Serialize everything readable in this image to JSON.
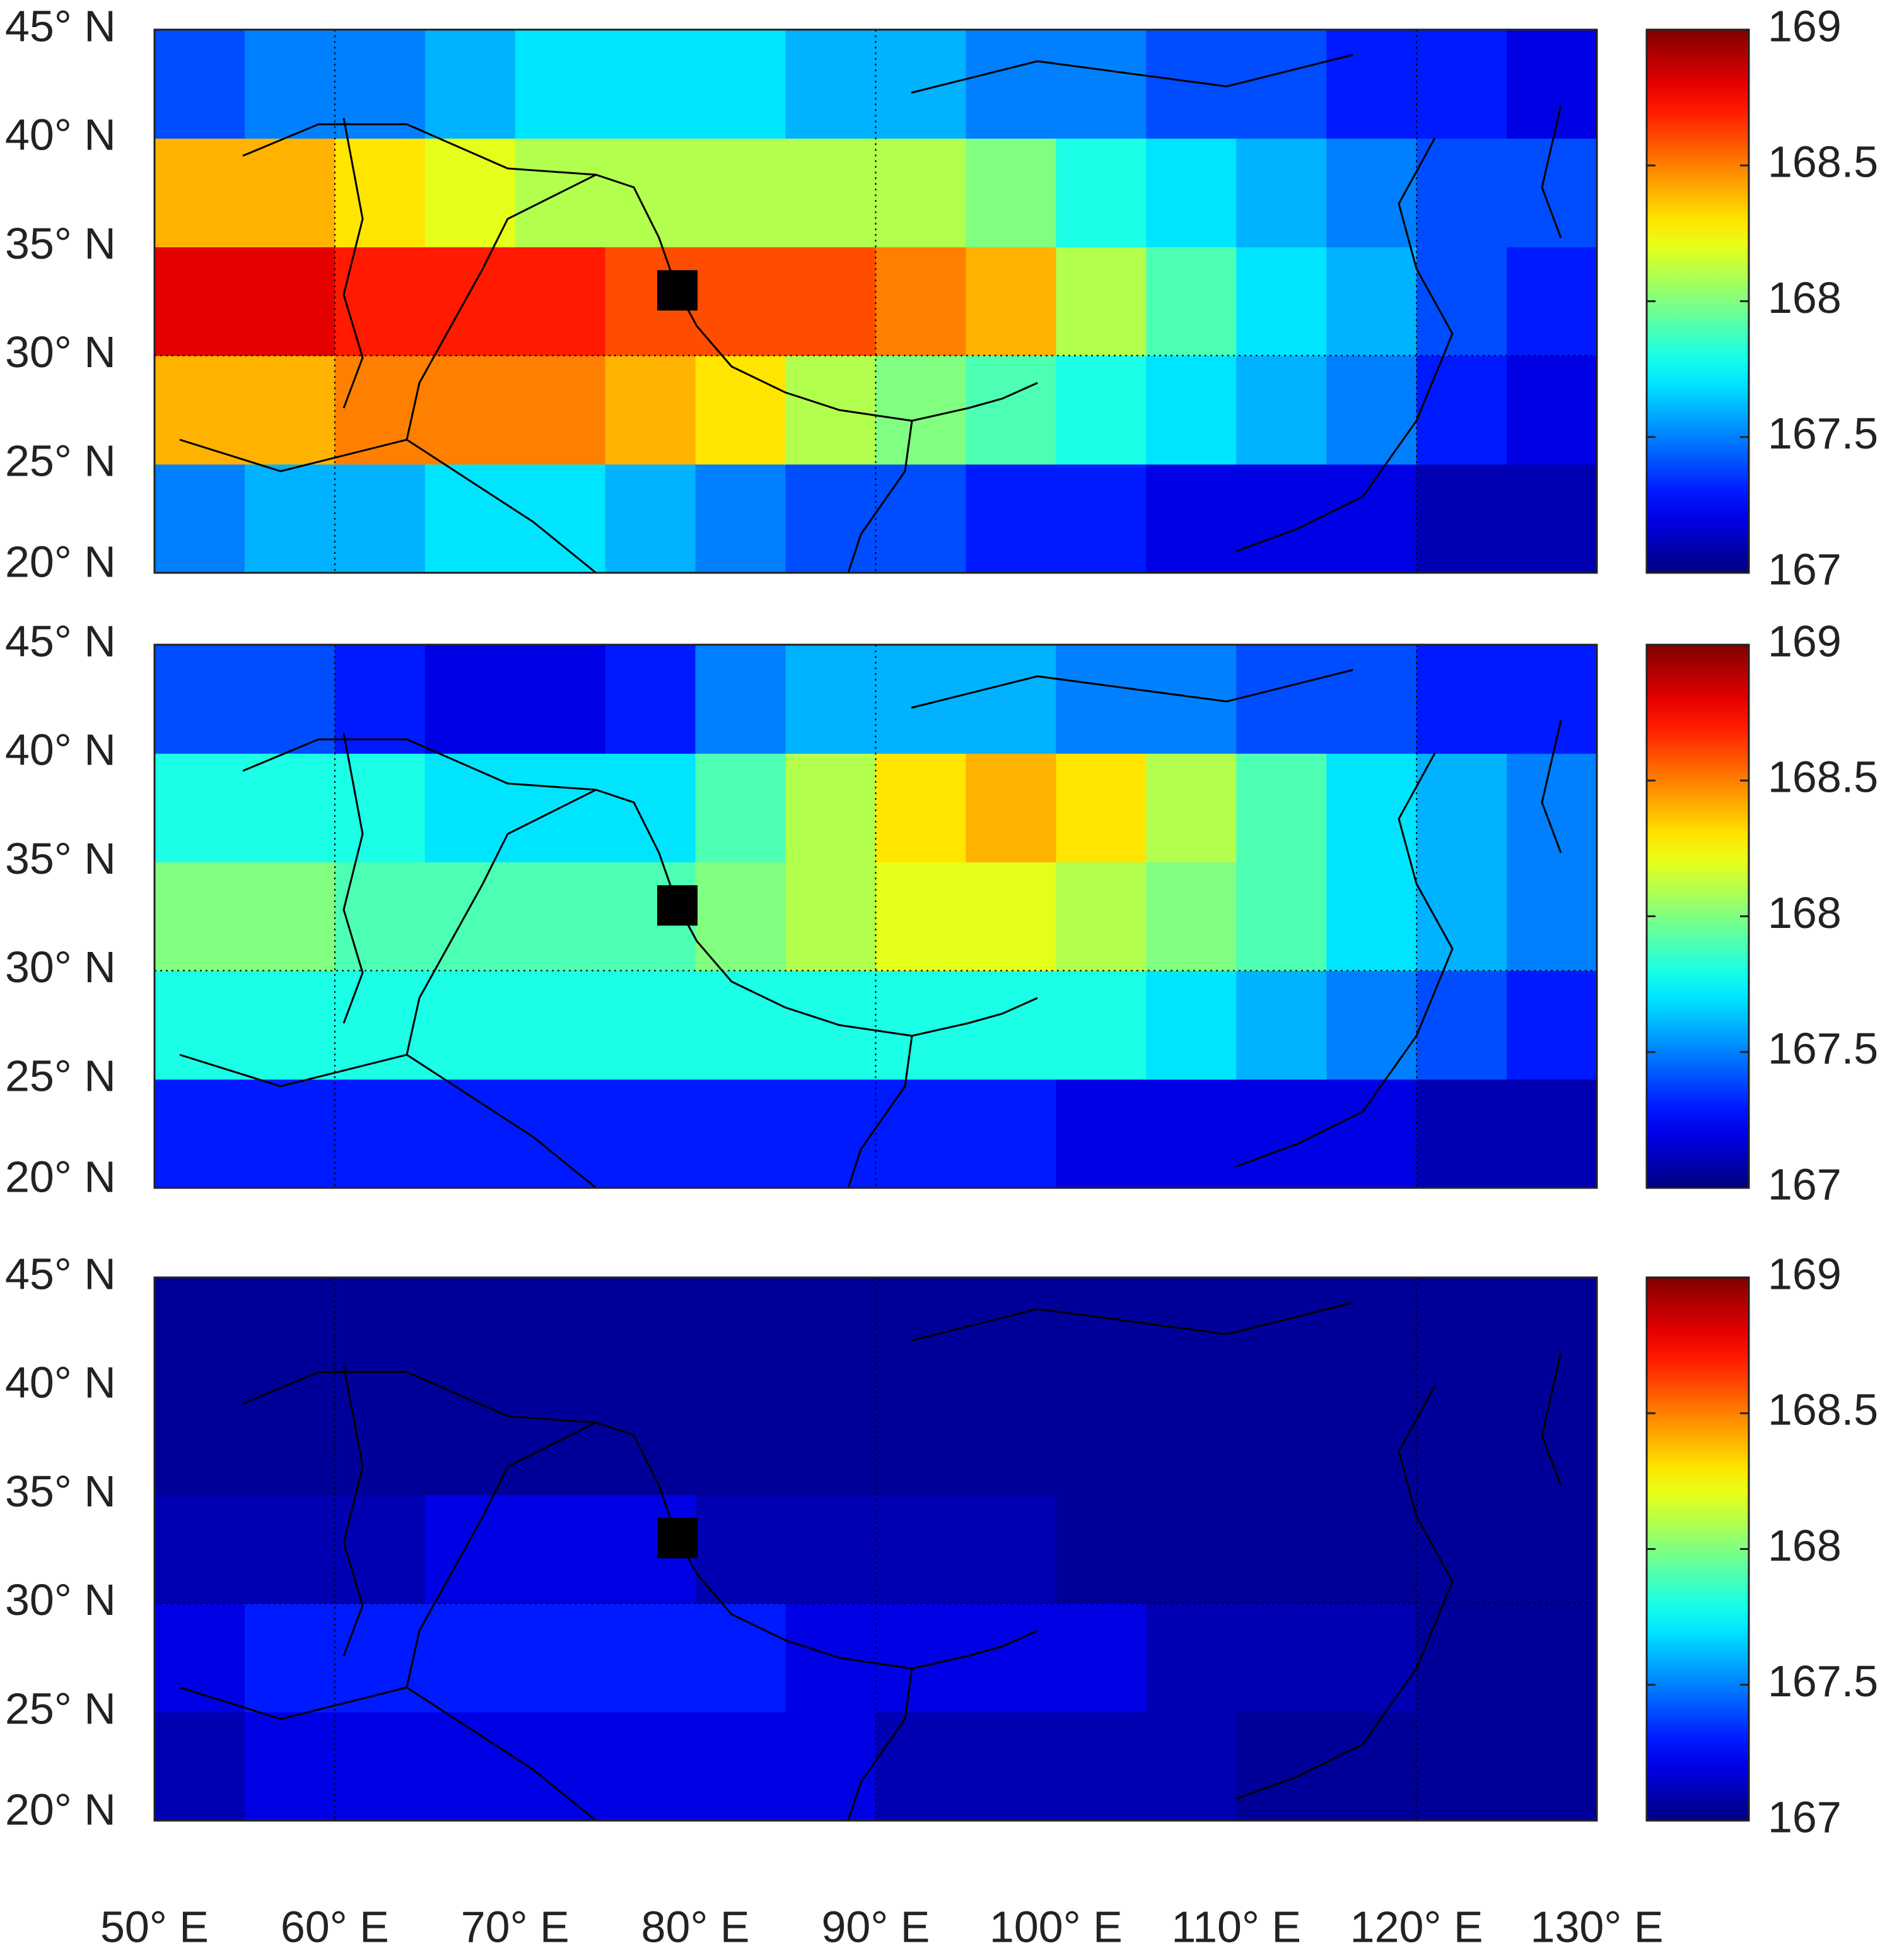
{
  "chart_data": [
    {
      "type": "heatmap",
      "colormap": "jet",
      "x": [
        52.5,
        57.5,
        62.5,
        67.5,
        72.5,
        77.5,
        82.5,
        87.5,
        92.5,
        97.5,
        102.5,
        107.5,
        112.5,
        117.5,
        122.5,
        127.5
      ],
      "y": [
        22.5,
        27.5,
        32.5,
        37.5,
        42.5
      ],
      "values": [
        [
          167.5,
          167.6,
          167.6,
          167.7,
          167.7,
          167.6,
          167.5,
          167.4,
          167.4,
          167.3,
          167.3,
          167.2,
          167.2,
          167.2,
          167.1,
          167.1
        ],
        [
          168.4,
          168.4,
          168.5,
          168.5,
          168.5,
          168.4,
          168.3,
          168.1,
          168.0,
          167.9,
          167.8,
          167.7,
          167.6,
          167.5,
          167.3,
          167.2
        ],
        [
          168.8,
          168.8,
          168.7,
          168.7,
          168.7,
          168.6,
          168.6,
          168.6,
          168.5,
          168.4,
          168.1,
          167.9,
          167.7,
          167.6,
          167.4,
          167.3
        ],
        [
          168.4,
          168.4,
          168.3,
          168.2,
          168.1,
          168.1,
          168.1,
          168.1,
          168.1,
          168.0,
          167.8,
          167.7,
          167.6,
          167.5,
          167.4,
          167.4
        ],
        [
          167.4,
          167.5,
          167.5,
          167.6,
          167.7,
          167.7,
          167.7,
          167.6,
          167.6,
          167.5,
          167.5,
          167.4,
          167.4,
          167.3,
          167.3,
          167.2
        ]
      ],
      "xlim": [
        50,
        130
      ],
      "ylim": [
        20,
        45
      ],
      "xgrid": [
        60,
        90,
        120
      ],
      "ygrid": [
        30
      ],
      "yticks": [
        {
          "value": 20,
          "label": "20° N"
        },
        {
          "value": 25,
          "label": "25° N"
        },
        {
          "value": 30,
          "label": "30° N"
        },
        {
          "value": 35,
          "label": "35° N"
        },
        {
          "value": 40,
          "label": "40° N"
        },
        {
          "value": 45,
          "label": "45° N"
        }
      ],
      "marker": [
        79,
        33
      ],
      "zlim": [
        167,
        169
      ],
      "zticks": [
        167,
        167.5,
        168,
        168.5,
        169
      ]
    },
    {
      "type": "heatmap",
      "colormap": "jet",
      "x": [
        52.5,
        57.5,
        62.5,
        67.5,
        72.5,
        77.5,
        82.5,
        87.5,
        92.5,
        97.5,
        102.5,
        107.5,
        112.5,
        117.5,
        122.5,
        127.5
      ],
      "y": [
        22.5,
        27.5,
        32.5,
        37.5,
        42.5
      ],
      "values": [
        [
          167.3,
          167.3,
          167.3,
          167.3,
          167.3,
          167.3,
          167.3,
          167.3,
          167.3,
          167.3,
          167.2,
          167.2,
          167.2,
          167.2,
          167.1,
          167.1
        ],
        [
          167.8,
          167.8,
          167.8,
          167.8,
          167.8,
          167.8,
          167.8,
          167.8,
          167.8,
          167.8,
          167.8,
          167.7,
          167.6,
          167.5,
          167.4,
          167.3
        ],
        [
          168.0,
          168.0,
          167.9,
          167.9,
          167.9,
          167.9,
          168.0,
          168.1,
          168.2,
          168.2,
          168.1,
          168.0,
          167.9,
          167.7,
          167.6,
          167.5
        ],
        [
          167.8,
          167.8,
          167.8,
          167.7,
          167.7,
          167.7,
          167.9,
          168.1,
          168.3,
          168.4,
          168.3,
          168.1,
          167.9,
          167.7,
          167.6,
          167.5
        ],
        [
          167.4,
          167.4,
          167.3,
          167.2,
          167.2,
          167.3,
          167.5,
          167.6,
          167.6,
          167.6,
          167.5,
          167.5,
          167.4,
          167.4,
          167.3,
          167.3
        ]
      ],
      "xlim": [
        50,
        130
      ],
      "ylim": [
        20,
        45
      ],
      "xgrid": [
        60,
        90,
        120
      ],
      "ygrid": [
        30
      ],
      "yticks": [
        {
          "value": 20,
          "label": "20° N"
        },
        {
          "value": 25,
          "label": "25° N"
        },
        {
          "value": 30,
          "label": "30° N"
        },
        {
          "value": 35,
          "label": "35° N"
        },
        {
          "value": 40,
          "label": "40° N"
        },
        {
          "value": 45,
          "label": "45° N"
        }
      ],
      "marker": [
        79,
        33
      ],
      "zlim": [
        167,
        169
      ],
      "zticks": [
        167,
        167.5,
        168,
        168.5,
        169
      ]
    },
    {
      "type": "heatmap",
      "colormap": "jet",
      "x": [
        52.5,
        57.5,
        62.5,
        67.5,
        72.5,
        77.5,
        82.5,
        87.5,
        92.5,
        97.5,
        102.5,
        107.5,
        112.5,
        117.5,
        122.5,
        127.5
      ],
      "y": [
        22.5,
        27.5,
        32.5,
        37.5,
        42.5
      ],
      "values": [
        [
          167.1,
          167.2,
          167.2,
          167.2,
          167.2,
          167.2,
          167.2,
          167.2,
          167.1,
          167.1,
          167.1,
          167.1,
          167.05,
          167.05,
          167.05,
          167.05
        ],
        [
          167.2,
          167.3,
          167.3,
          167.3,
          167.3,
          167.3,
          167.3,
          167.2,
          167.2,
          167.2,
          167.2,
          167.1,
          167.1,
          167.1,
          167.05,
          167.05
        ],
        [
          167.1,
          167.1,
          167.1,
          167.2,
          167.2,
          167.2,
          167.1,
          167.1,
          167.1,
          167.1,
          167.05,
          167.05,
          167.05,
          167.05,
          167.05,
          167.05
        ],
        [
          167.05,
          167.05,
          167.05,
          167.05,
          167.05,
          167.05,
          167.05,
          167.05,
          167.05,
          167.05,
          167.05,
          167.05,
          167.05,
          167.05,
          167.05,
          167.05
        ],
        [
          167.05,
          167.05,
          167.05,
          167.05,
          167.05,
          167.05,
          167.05,
          167.05,
          167.05,
          167.05,
          167.05,
          167.05,
          167.05,
          167.05,
          167.05,
          167.05
        ]
      ],
      "xlim": [
        50,
        130
      ],
      "ylim": [
        20,
        45
      ],
      "xgrid": [
        60,
        90,
        120
      ],
      "ygrid": [
        30
      ],
      "yticks": [
        {
          "value": 20,
          "label": "20° N"
        },
        {
          "value": 25,
          "label": "25° N"
        },
        {
          "value": 30,
          "label": "30° N"
        },
        {
          "value": 35,
          "label": "35° N"
        },
        {
          "value": 40,
          "label": "40° N"
        },
        {
          "value": 45,
          "label": "45° N"
        }
      ],
      "xticks": [
        {
          "value": 50,
          "label": "50° E"
        },
        {
          "value": 60,
          "label": "60° E"
        },
        {
          "value": 70,
          "label": "70° E"
        },
        {
          "value": 80,
          "label": "80° E"
        },
        {
          "value": 90,
          "label": "90° E"
        },
        {
          "value": 100,
          "label": "100° E"
        },
        {
          "value": 110,
          "label": "110° E"
        },
        {
          "value": 120,
          "label": "120° E"
        },
        {
          "value": 130,
          "label": "130° E"
        }
      ],
      "marker": [
        79,
        33
      ],
      "zlim": [
        167,
        169
      ],
      "zticks": [
        167,
        167.5,
        168,
        168.5,
        169
      ]
    }
  ]
}
